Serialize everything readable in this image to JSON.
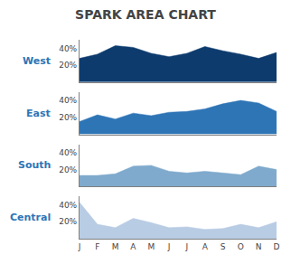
{
  "chart_data": {
    "type": "area",
    "title": "SPARK AREA CHART",
    "categories": [
      "J",
      "F",
      "M",
      "A",
      "M",
      "J",
      "J",
      "A",
      "S",
      "O",
      "N",
      "D"
    ],
    "series": [
      {
        "name": "West",
        "color": "#0D3B6E",
        "values": [
          0.28,
          0.33,
          0.43,
          0.41,
          0.34,
          0.3,
          0.34,
          0.42,
          0.37,
          0.33,
          0.28,
          0.35
        ]
      },
      {
        "name": "East",
        "color": "#2E75B6",
        "values": [
          0.15,
          0.23,
          0.18,
          0.25,
          0.22,
          0.26,
          0.27,
          0.3,
          0.36,
          0.4,
          0.37,
          0.27
        ]
      },
      {
        "name": "South",
        "color": "#7FAACD",
        "values": [
          0.13,
          0.13,
          0.15,
          0.24,
          0.25,
          0.18,
          0.16,
          0.18,
          0.16,
          0.14,
          0.24,
          0.2
        ]
      },
      {
        "name": "Central",
        "color": "#B8CCE4",
        "values": [
          0.43,
          0.17,
          0.13,
          0.24,
          0.19,
          0.13,
          0.14,
          0.11,
          0.12,
          0.17,
          0.13,
          0.2
        ]
      }
    ],
    "ylim": [
      0.0,
      0.5
    ],
    "yticks": [
      {
        "value": 0.2,
        "label": "20%"
      },
      {
        "value": 0.4,
        "label": "40%"
      }
    ],
    "grid": false
  }
}
